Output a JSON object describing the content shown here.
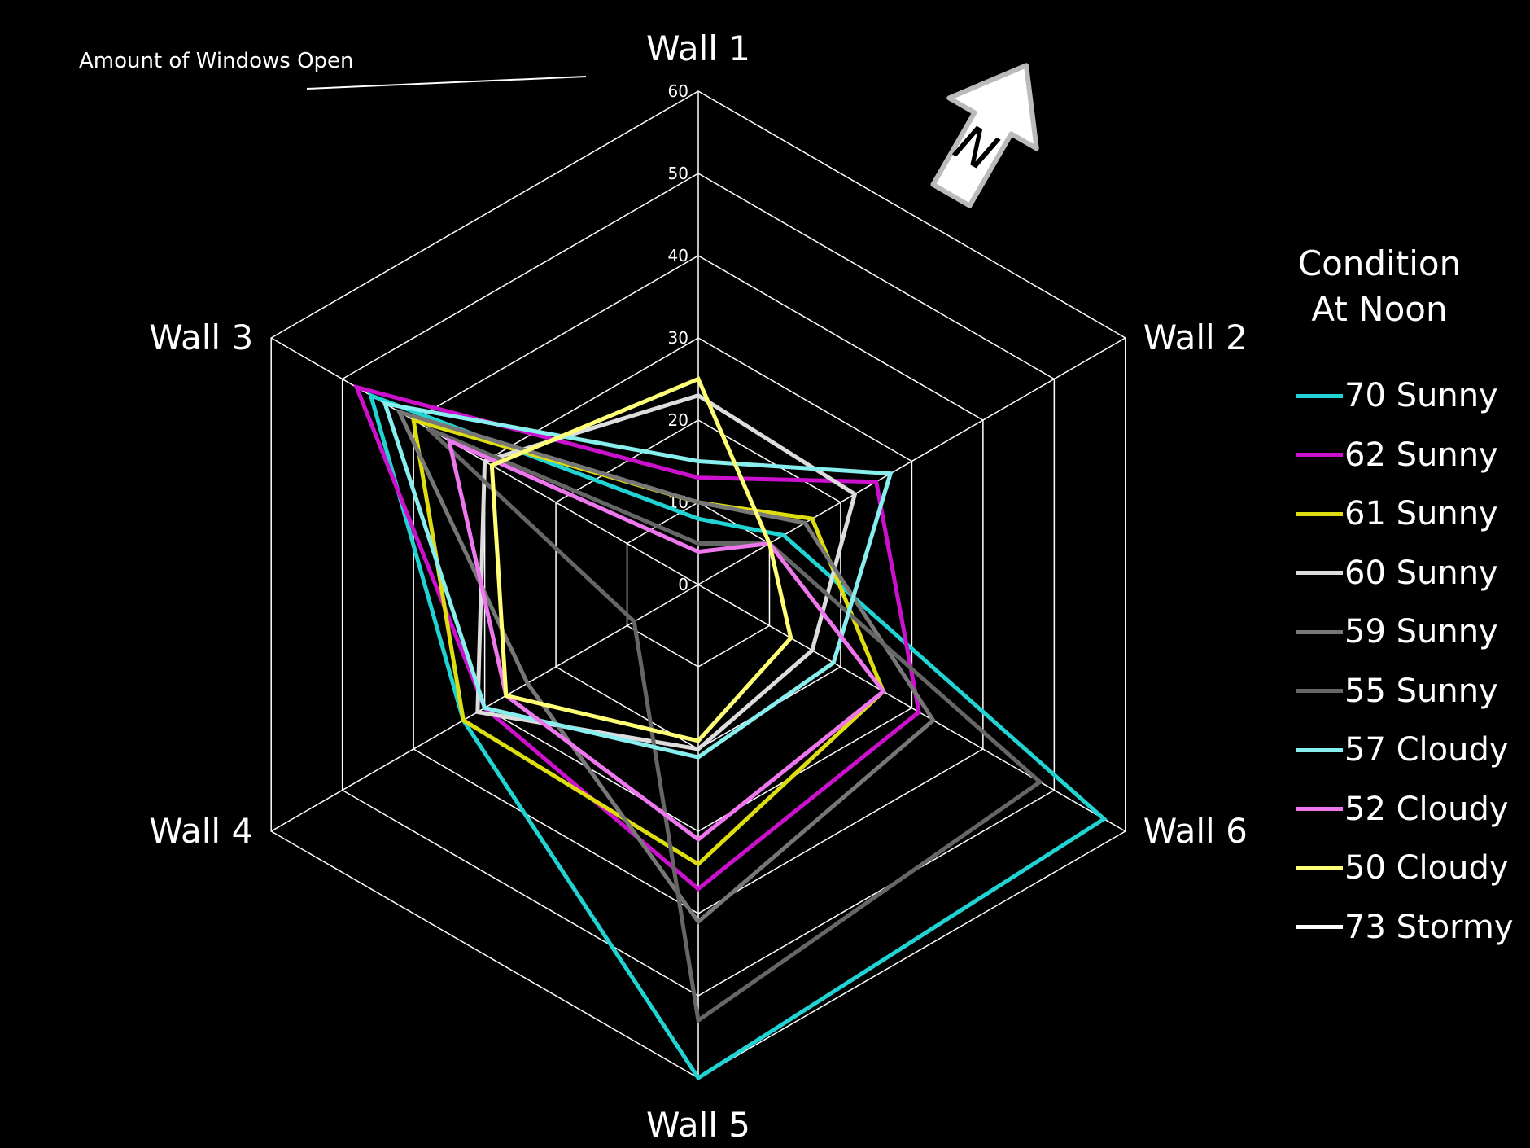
{
  "chart_data": {
    "type": "radar",
    "annotation": "Amount of Windows Open",
    "legend_title": [
      "Condition",
      "At Noon"
    ],
    "categories": [
      "Wall 1",
      "Wall 2",
      "Wall 6",
      "Wall 5",
      "Wall 4",
      "Wall 3"
    ],
    "rlim": [
      0,
      60
    ],
    "ticks": [
      "0",
      "10",
      "20",
      "30",
      "40",
      "50",
      "60"
    ],
    "legend_position": "right",
    "north_label": "N",
    "series": [
      {
        "name": "70 Sunny",
        "color": "#22d3d3",
        "values": [
          8,
          12,
          57,
          60,
          33,
          46
        ]
      },
      {
        "name": "62 Sunny",
        "color": "#cc11cc",
        "values": [
          13,
          25,
          31,
          37,
          30,
          48
        ]
      },
      {
        "name": "61 Sunny",
        "color": "#dddd11",
        "values": [
          10,
          16,
          26,
          34,
          33,
          40
        ]
      },
      {
        "name": "60 Sunny",
        "color": "#dddddd",
        "values": [
          23,
          22,
          16,
          20,
          31,
          30
        ]
      },
      {
        "name": "59 Sunny",
        "color": "#777777",
        "values": [
          10,
          15,
          33,
          41,
          24,
          42
        ]
      },
      {
        "name": "55 Sunny",
        "color": "#666666",
        "values": [
          5,
          10,
          48,
          53,
          9,
          38
        ]
      },
      {
        "name": "57 Cloudy",
        "color": "#88eeee",
        "values": [
          15,
          27,
          19,
          21,
          30,
          44
        ]
      },
      {
        "name": "52 Cloudy",
        "color": "#ee77ee",
        "values": [
          4,
          10,
          26,
          31,
          27,
          35
        ]
      },
      {
        "name": "50 Cloudy",
        "color": "#ffff77",
        "values": [
          25,
          10,
          13,
          19,
          27,
          29
        ]
      },
      {
        "name": "73 Stormy",
        "color": "#ffffff",
        "values": [
          0,
          0,
          0,
          0,
          0,
          0
        ]
      }
    ]
  }
}
